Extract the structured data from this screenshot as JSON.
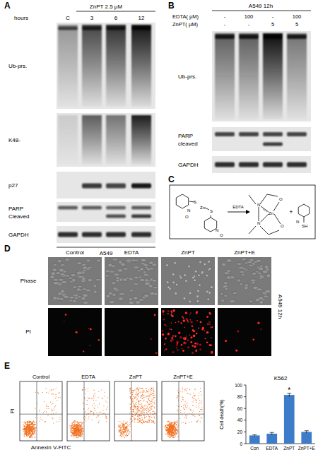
{
  "figure": {
    "A": {
      "label": "A",
      "header": "ZnPT 2.5 μM",
      "row_label": "hours",
      "lanes": [
        "C",
        "3",
        "6",
        "12"
      ],
      "blots": [
        {
          "lines": [
            "Ub-prs."
          ]
        },
        {
          "lines": [
            "K48-"
          ]
        },
        {
          "lines": [
            "p27"
          ]
        },
        {
          "lines": [
            "PARP",
            "Cleaved"
          ]
        },
        {
          "lines": [
            "GAPDH"
          ]
        }
      ],
      "footer": "A549"
    },
    "B": {
      "label": "B",
      "header": "A549 12h",
      "rows": [
        {
          "label": "EDTA( μM)",
          "values": [
            "-",
            "100",
            "-",
            "100"
          ]
        },
        {
          "label": "ZnPT( μM)",
          "values": [
            "-",
            "-",
            "5",
            "5"
          ]
        }
      ],
      "blots": [
        {
          "lines": [
            "Ub-prs."
          ]
        },
        {
          "lines": [
            "PARP",
            "cleaved"
          ]
        },
        {
          "lines": [
            "GAPDH"
          ]
        }
      ]
    },
    "C": {
      "label": "C",
      "reagent": "EDTA",
      "metal": "Zn",
      "nitrogen": "N",
      "oxygen": "O",
      "sulfur": "S",
      "thiol": "SH",
      "plus": "+"
    },
    "D": {
      "label": "D",
      "columns": [
        "Control",
        "EDTA",
        "ZnPT",
        "ZnPT+E"
      ],
      "rows": [
        "Phase",
        "PI"
      ],
      "side": "A549 12h"
    },
    "E": {
      "label": "E",
      "plots": [
        "Control",
        "EDTA",
        "ZnPT",
        "ZnPT+E"
      ],
      "x_label": "Annexin V-FITC",
      "y_label": "PI"
    }
  },
  "chart_data": {
    "type": "bar",
    "title": "K562",
    "y_label": "Cell death(%)",
    "categories": [
      "Con",
      "EDTA",
      "ZnPT",
      "ZnPT+E"
    ],
    "values": [
      14,
      17,
      83,
      20
    ],
    "errors": [
      1,
      2,
      3,
      2
    ],
    "color": "#3d7cc9",
    "ylim": [
      0,
      100
    ],
    "yticks": [
      0,
      20,
      40,
      60,
      80,
      100
    ],
    "annotations": [
      {
        "category": 2,
        "text": "*"
      }
    ]
  }
}
